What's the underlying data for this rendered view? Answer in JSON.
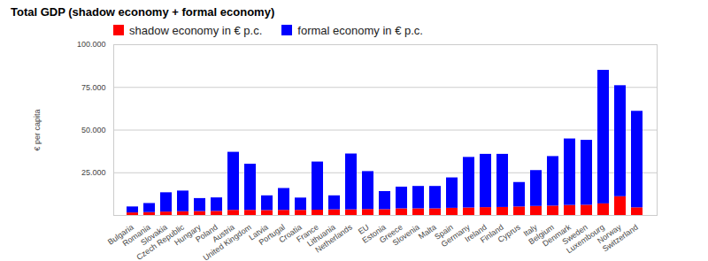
{
  "chart_data": {
    "type": "bar",
    "title": "Total GDP (shadow economy + formal economy)",
    "y_label": "€ per capita",
    "stacked": true,
    "grid": true,
    "legend": "top-left",
    "categories": [
      "Bulgaria",
      "Romania",
      "Slovakia",
      "Czech Republic",
      "Hungary",
      "Poland",
      "Austria",
      "United Kingdom",
      "Latvia",
      "Portugal",
      "Croatia",
      "France",
      "Lithuania",
      "Netherlands",
      "EU",
      "Estonia",
      "Greece",
      "Slovenia",
      "Malta",
      "Spain",
      "Germany",
      "Ireland",
      "Finland",
      "Cyprus",
      "Italy",
      "Belgium",
      "Denmark",
      "Sweden",
      "Luxembourg",
      "Norway",
      "Switzerland"
    ],
    "series": [
      {
        "name": "shadow economy in € p.c.",
        "color": "#ff0000",
        "values": [
          1500,
          1700,
          2000,
          2200,
          2300,
          2400,
          3000,
          3000,
          2900,
          3000,
          3000,
          3100,
          3300,
          3300,
          3500,
          3400,
          3900,
          3900,
          3900,
          4200,
          4400,
          4600,
          4700,
          5000,
          5300,
          5500,
          5900,
          6000,
          6800,
          11000,
          4500
        ]
      },
      {
        "name": "formal economy in € p.c.",
        "color": "#0000ff",
        "values": [
          3500,
          5300,
          11300,
          12100,
          7600,
          7900,
          34000,
          27000,
          8600,
          12800,
          7200,
          28200,
          8200,
          32700,
          22200,
          10600,
          12700,
          13100,
          13100,
          17800,
          29600,
          31200,
          31100,
          14300,
          21000,
          29000,
          38900,
          38000,
          78200,
          65000,
          56500
        ]
      }
    ],
    "ylim": [
      0,
      100000
    ],
    "yticks": [
      {
        "value": 25000,
        "label": "25.000"
      },
      {
        "value": 50000,
        "label": "50.000"
      },
      {
        "value": 75000,
        "label": "75.000"
      },
      {
        "value": 100000,
        "label": "100.000"
      }
    ]
  }
}
